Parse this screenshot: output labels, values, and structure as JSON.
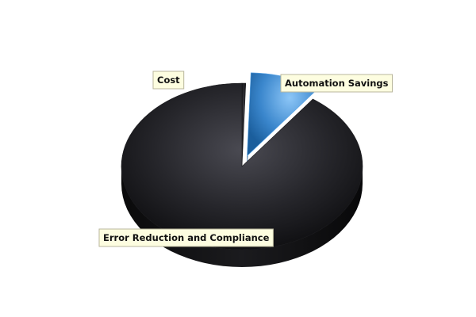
{
  "chart_data": {
    "type": "pie",
    "style": "3d-exploded",
    "title": "",
    "slices": [
      {
        "label": "Cost",
        "value": 0.5,
        "color": "#2d2d33",
        "exploded": false
      },
      {
        "label": "Automation Savings",
        "value": 9.5,
        "color": "#3a86cc",
        "exploded": true
      },
      {
        "label": "Error Reduction and Compliance",
        "value": 90,
        "color": "#26262b",
        "exploded": false
      }
    ],
    "legend": "none",
    "data_labels": "callout-boxes"
  }
}
